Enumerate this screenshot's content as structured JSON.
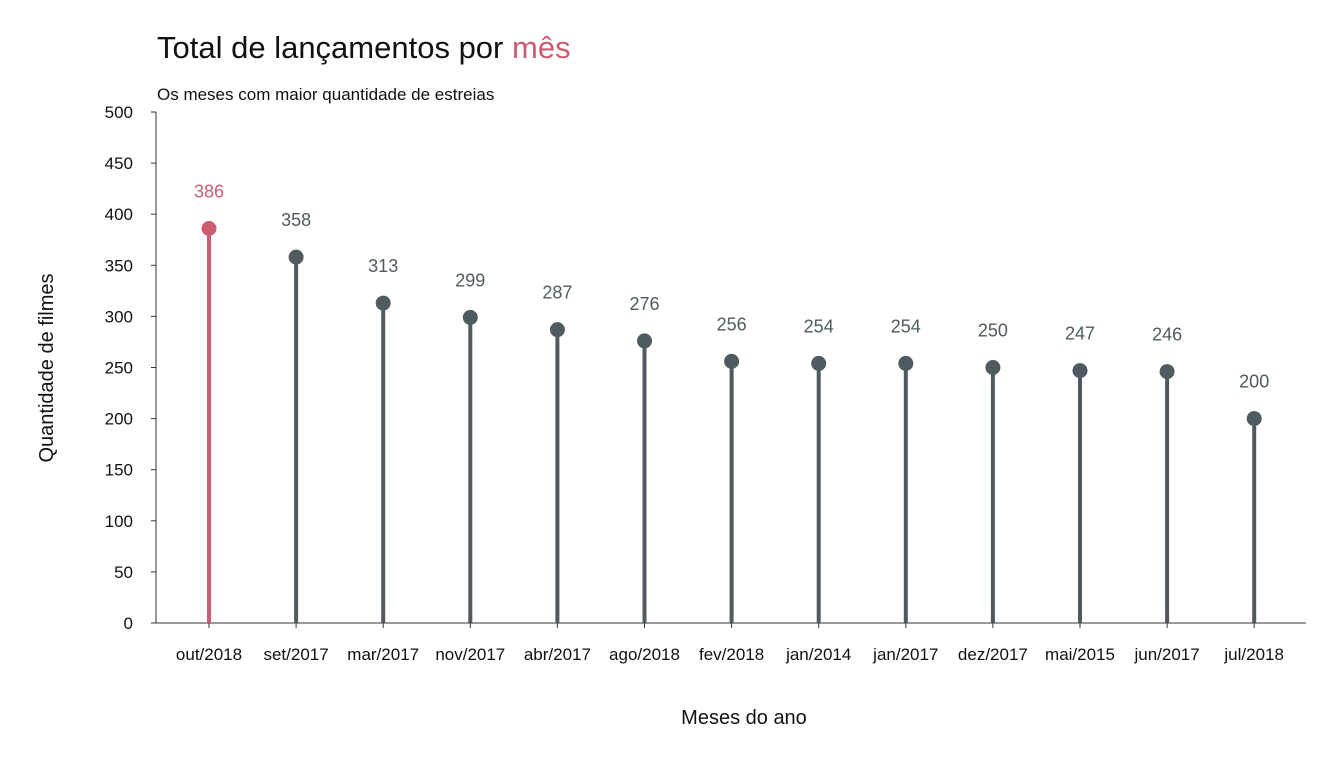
{
  "chart_data": {
    "type": "lollipop",
    "title_main": "Total de lançamentos por ",
    "title_highlight": "mês",
    "subtitle": "Os meses com maior quantidade de estreias",
    "xlabel": "Meses do ano",
    "ylabel": "Quantidade de filmes",
    "ylim": [
      0,
      500
    ],
    "yticks": [
      0,
      50,
      100,
      150,
      200,
      250,
      300,
      350,
      400,
      450,
      500
    ],
    "categories": [
      "out/2018",
      "set/2017",
      "mar/2017",
      "nov/2017",
      "abr/2017",
      "ago/2018",
      "fev/2018",
      "jan/2014",
      "jan/2017",
      "dez/2017",
      "mai/2015",
      "jun/2017",
      "jul/2018"
    ],
    "values": [
      386,
      358,
      313,
      299,
      287,
      276,
      256,
      254,
      254,
      250,
      247,
      246,
      200
    ],
    "highlight_index": 0,
    "colors": {
      "highlight": "#cd5c72",
      "default": "#4f5b5e",
      "axis": "#333333"
    },
    "grid": false
  }
}
